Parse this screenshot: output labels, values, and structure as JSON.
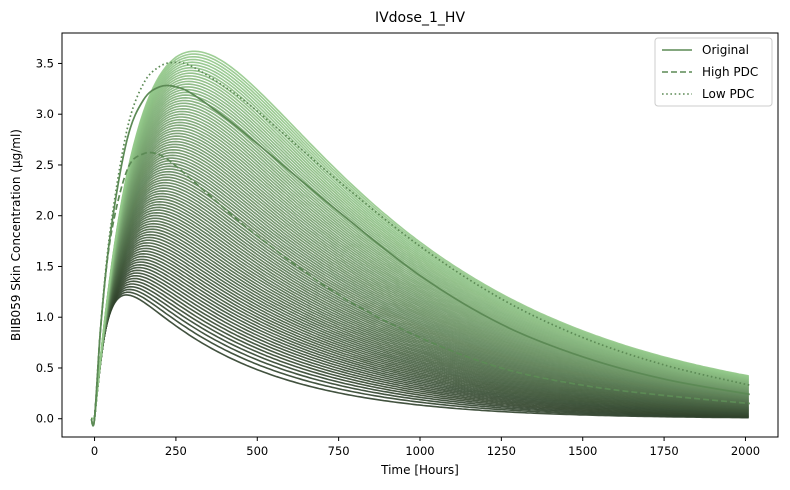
{
  "chart_data": {
    "type": "line",
    "title": "IVdose_1_HV",
    "xlabel": "Time [Hours]",
    "ylabel": "BIIB059 Skin Concentration (µg/ml)",
    "xlim": [
      -100,
      2100
    ],
    "ylim": [
      -0.18,
      3.8
    ],
    "xticks": [
      0,
      250,
      500,
      750,
      1000,
      1250,
      1500,
      1750,
      2000
    ],
    "yticks": [
      0.0,
      0.5,
      1.0,
      1.5,
      2.0,
      2.5,
      3.0,
      3.5
    ],
    "legend_position": "top-right",
    "grid": false,
    "colors": {
      "band_dark": "#2e3f2a",
      "band_light": "#93c98a",
      "original": "#5c8a55",
      "high_pdc": "#5c8a55",
      "low_pdc": "#5c8a55"
    },
    "band": {
      "description_count": 90,
      "x_start": 0,
      "x_end": 2013,
      "lowest_curve_peak": {
        "x": 65,
        "y": 1.22
      },
      "highest_curve_peak": {
        "x": 270,
        "y": 3.62
      },
      "lowest_curve_end": 0.01,
      "highest_curve_end": 0.42
    },
    "series": [
      {
        "name": "Original",
        "style": "solid",
        "x": [
          -10,
          0,
          20,
          50,
          100,
          150,
          200,
          250,
          300,
          400,
          500,
          750,
          1000,
          1250,
          1500,
          1750,
          2013
        ],
        "y": [
          0.0,
          0.0,
          0.95,
          1.85,
          2.75,
          3.14,
          3.27,
          3.27,
          3.2,
          2.97,
          2.71,
          2.04,
          1.41,
          0.93,
          0.61,
          0.39,
          0.24
        ]
      },
      {
        "name": "High PDC",
        "style": "dashed",
        "x": [
          -10,
          0,
          20,
          50,
          100,
          150,
          200,
          250,
          300,
          400,
          500,
          750,
          1000,
          1250,
          1500,
          1750,
          2013
        ],
        "y": [
          0.0,
          0.0,
          0.95,
          1.8,
          2.45,
          2.61,
          2.6,
          2.49,
          2.35,
          2.07,
          1.8,
          1.22,
          0.8,
          0.5,
          0.33,
          0.23,
          0.15
        ]
      },
      {
        "name": "Low PDC",
        "style": "dotted",
        "x": [
          -10,
          0,
          20,
          50,
          100,
          150,
          200,
          250,
          300,
          400,
          500,
          750,
          1000,
          1250,
          1500,
          1750,
          2013
        ],
        "y": [
          0.0,
          0.0,
          0.96,
          1.9,
          2.85,
          3.3,
          3.47,
          3.51,
          3.47,
          3.27,
          3.03,
          2.34,
          1.7,
          1.18,
          0.8,
          0.53,
          0.33
        ]
      }
    ]
  }
}
